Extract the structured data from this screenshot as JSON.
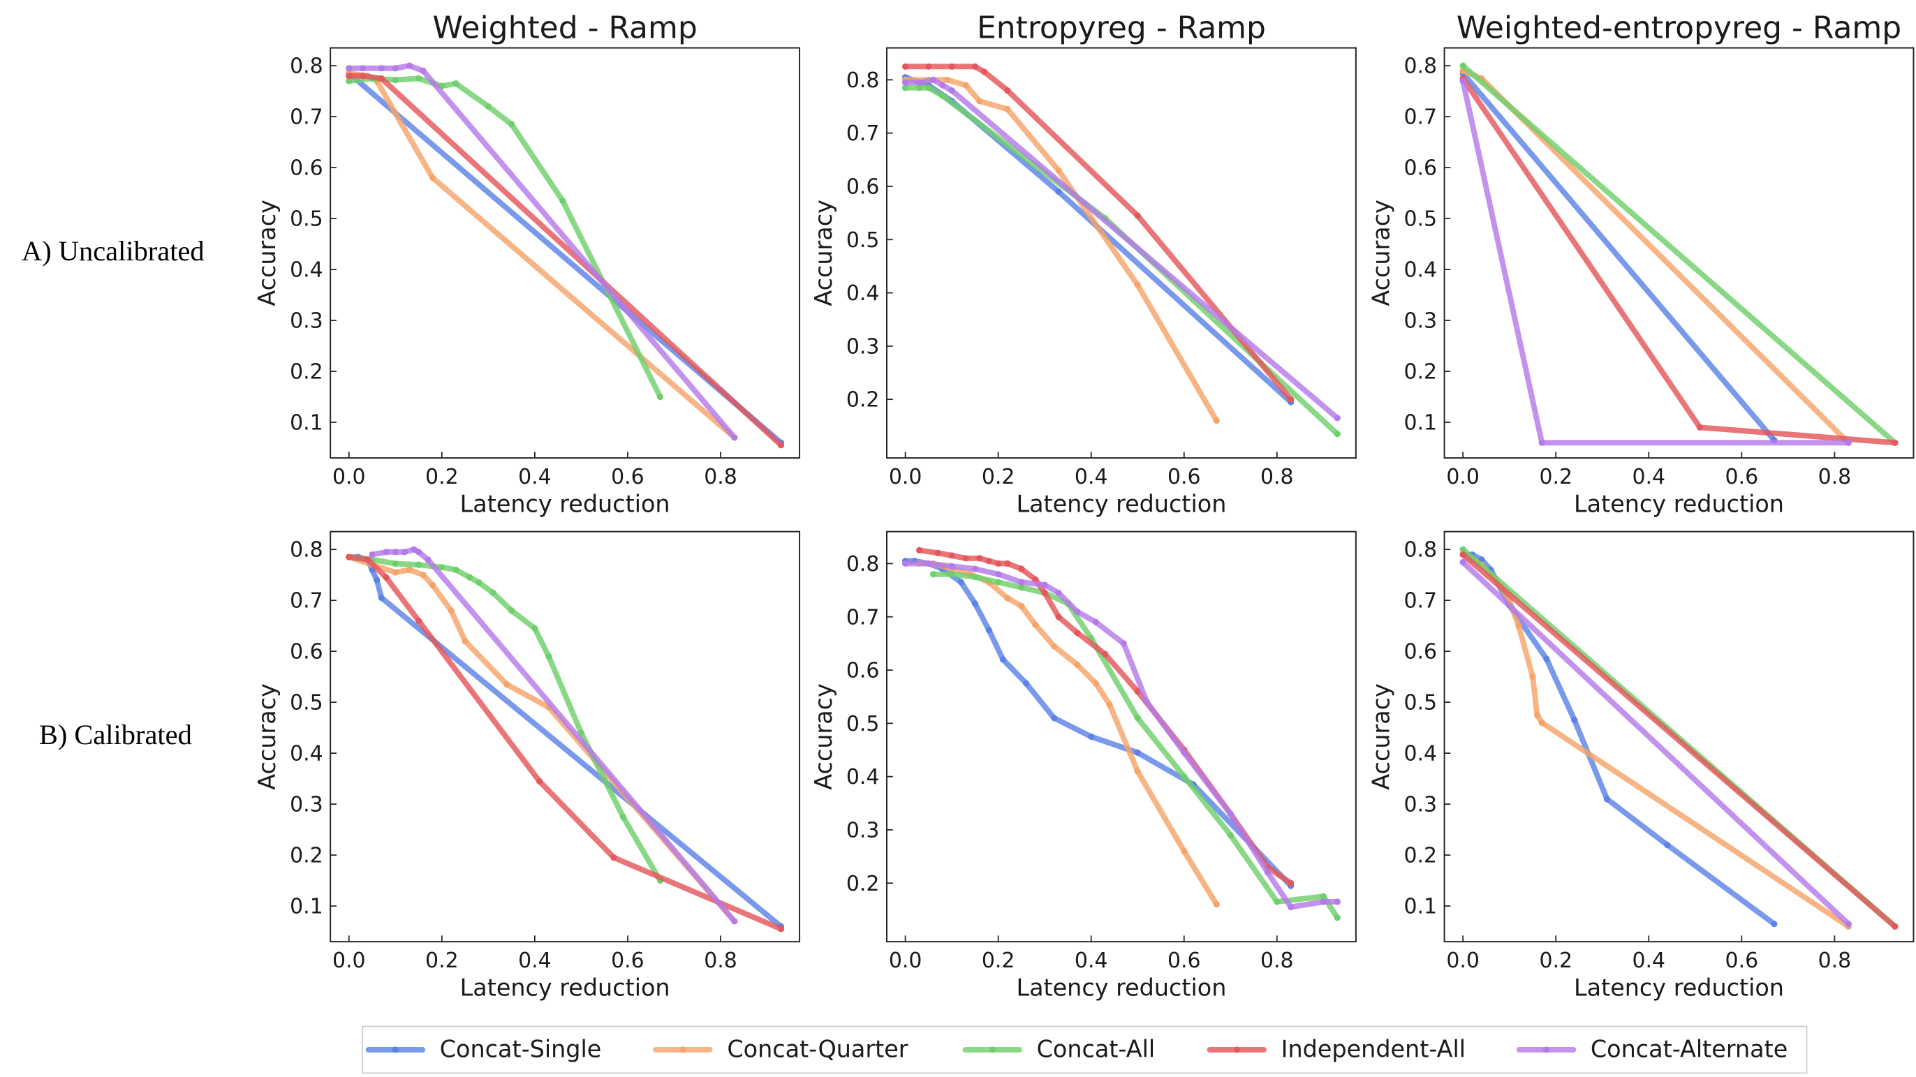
{
  "row_labels": [
    "A) Uncalibrated",
    "B) Calibrated"
  ],
  "colors": {
    "Concat-Single": "#5b82e6",
    "Concat-Quarter": "#f5a46a",
    "Concat-All": "#6fcf6b",
    "Independent-All": "#e4575c",
    "Concat-Alternate": "#b47ae8"
  },
  "legend": [
    "Concat-Single",
    "Concat-Quarter",
    "Concat-All",
    "Independent-All",
    "Concat-Alternate"
  ],
  "chart_data": [
    {
      "type": "line",
      "title": "Weighted - Ramp",
      "xlabel": "Latency reduction",
      "ylabel": "Accuracy",
      "xlim": [
        -0.04,
        0.97
      ],
      "ylim": [
        0.03,
        0.835
      ],
      "xticks": [
        "0.0",
        "0.2",
        "0.4",
        "0.6",
        "0.8"
      ],
      "yticks": [
        "0.1",
        "0.2",
        "0.3",
        "0.4",
        "0.5",
        "0.6",
        "0.7",
        "0.8"
      ],
      "series": [
        {
          "name": "Concat-Single",
          "x": [
            0.0,
            0.93
          ],
          "y": [
            0.785,
            0.06
          ]
        },
        {
          "name": "Concat-Quarter",
          "x": [
            0.0,
            0.04,
            0.06,
            0.18,
            0.83
          ],
          "y": [
            0.785,
            0.78,
            0.77,
            0.58,
            0.07
          ]
        },
        {
          "name": "Concat-All",
          "x": [
            0.0,
            0.05,
            0.1,
            0.15,
            0.2,
            0.23,
            0.3,
            0.35,
            0.46,
            0.67
          ],
          "y": [
            0.77,
            0.775,
            0.772,
            0.775,
            0.76,
            0.765,
            0.72,
            0.685,
            0.535,
            0.15
          ]
        },
        {
          "name": "Independent-All",
          "x": [
            0.0,
            0.03,
            0.07,
            0.93
          ],
          "y": [
            0.78,
            0.78,
            0.775,
            0.055
          ]
        },
        {
          "name": "Concat-Alternate",
          "x": [
            0.0,
            0.03,
            0.07,
            0.1,
            0.13,
            0.16,
            0.83
          ],
          "y": [
            0.795,
            0.795,
            0.795,
            0.795,
            0.8,
            0.79,
            0.07
          ]
        }
      ]
    },
    {
      "type": "line",
      "title": "Entropyreg - Ramp",
      "xlabel": "Latency reduction",
      "ylabel": "Accuracy",
      "xlim": [
        -0.04,
        0.97
      ],
      "ylim": [
        0.09,
        0.86
      ],
      "xticks": [
        "0.0",
        "0.2",
        "0.4",
        "0.6",
        "0.8"
      ],
      "yticks": [
        "0.2",
        "0.3",
        "0.4",
        "0.5",
        "0.6",
        "0.7",
        "0.8"
      ],
      "series": [
        {
          "name": "Concat-Single",
          "x": [
            0.0,
            0.05,
            0.1,
            0.33,
            0.83
          ],
          "y": [
            0.805,
            0.79,
            0.76,
            0.59,
            0.195
          ]
        },
        {
          "name": "Concat-Quarter",
          "x": [
            0.0,
            0.05,
            0.09,
            0.13,
            0.16,
            0.22,
            0.33,
            0.5,
            0.67
          ],
          "y": [
            0.8,
            0.8,
            0.8,
            0.79,
            0.76,
            0.745,
            0.63,
            0.415,
            0.16
          ]
        },
        {
          "name": "Concat-All",
          "x": [
            0.0,
            0.03,
            0.05,
            0.08,
            0.43,
            0.93
          ],
          "y": [
            0.785,
            0.785,
            0.785,
            0.77,
            0.54,
            0.135
          ]
        },
        {
          "name": "Independent-All",
          "x": [
            0.0,
            0.05,
            0.1,
            0.15,
            0.17,
            0.22,
            0.5,
            0.83
          ],
          "y": [
            0.825,
            0.825,
            0.825,
            0.825,
            0.815,
            0.78,
            0.545,
            0.2
          ]
        },
        {
          "name": "Concat-Alternate",
          "x": [
            0.0,
            0.03,
            0.06,
            0.08,
            0.1,
            0.93
          ],
          "y": [
            0.795,
            0.795,
            0.8,
            0.79,
            0.78,
            0.165
          ]
        }
      ]
    },
    {
      "type": "line",
      "title": "Weighted-entropyreg - Ramp",
      "xlabel": "Latency reduction",
      "ylabel": "Accuracy",
      "xlim": [
        -0.04,
        0.97
      ],
      "ylim": [
        0.03,
        0.835
      ],
      "xticks": [
        "0.0",
        "0.2",
        "0.4",
        "0.6",
        "0.8"
      ],
      "yticks": [
        "0.1",
        "0.2",
        "0.3",
        "0.4",
        "0.5",
        "0.6",
        "0.7",
        "0.8"
      ],
      "series": [
        {
          "name": "Concat-Single",
          "x": [
            0.0,
            0.67
          ],
          "y": [
            0.785,
            0.065
          ]
        },
        {
          "name": "Concat-Quarter",
          "x": [
            0.0,
            0.04,
            0.83
          ],
          "y": [
            0.79,
            0.775,
            0.06
          ]
        },
        {
          "name": "Concat-All",
          "x": [
            0.0,
            0.93
          ],
          "y": [
            0.8,
            0.06
          ]
        },
        {
          "name": "Independent-All",
          "x": [
            0.0,
            0.51,
            0.93
          ],
          "y": [
            0.775,
            0.09,
            0.06
          ]
        },
        {
          "name": "Concat-Alternate",
          "x": [
            0.0,
            0.17,
            0.83
          ],
          "y": [
            0.77,
            0.06,
            0.06
          ]
        }
      ]
    },
    {
      "type": "line",
      "title": "",
      "xlabel": "Latency reduction",
      "ylabel": "Accuracy",
      "xlim": [
        -0.04,
        0.97
      ],
      "ylim": [
        0.03,
        0.835
      ],
      "xticks": [
        "0.0",
        "0.2",
        "0.4",
        "0.6",
        "0.8"
      ],
      "yticks": [
        "0.1",
        "0.2",
        "0.3",
        "0.4",
        "0.5",
        "0.6",
        "0.7",
        "0.8"
      ],
      "series": [
        {
          "name": "Concat-Single",
          "x": [
            0.0,
            0.02,
            0.04,
            0.05,
            0.06,
            0.07,
            0.93
          ],
          "y": [
            0.785,
            0.785,
            0.78,
            0.76,
            0.74,
            0.705,
            0.06
          ]
        },
        {
          "name": "Concat-Quarter",
          "x": [
            0.0,
            0.05,
            0.1,
            0.13,
            0.16,
            0.18,
            0.22,
            0.25,
            0.34,
            0.43,
            0.83
          ],
          "y": [
            0.785,
            0.77,
            0.755,
            0.76,
            0.75,
            0.73,
            0.68,
            0.62,
            0.535,
            0.49,
            0.07
          ]
        },
        {
          "name": "Concat-All",
          "x": [
            0.0,
            0.05,
            0.1,
            0.15,
            0.2,
            0.23,
            0.26,
            0.28,
            0.31,
            0.35,
            0.4,
            0.43,
            0.5,
            0.59,
            0.67
          ],
          "y": [
            0.785,
            0.78,
            0.772,
            0.77,
            0.765,
            0.76,
            0.745,
            0.735,
            0.715,
            0.68,
            0.645,
            0.59,
            0.44,
            0.275,
            0.15
          ]
        },
        {
          "name": "Independent-All",
          "x": [
            0.0,
            0.04,
            0.08,
            0.15,
            0.41,
            0.57,
            0.93
          ],
          "y": [
            0.785,
            0.78,
            0.745,
            0.66,
            0.345,
            0.195,
            0.055
          ]
        },
        {
          "name": "Concat-Alternate",
          "x": [
            0.05,
            0.08,
            0.1,
            0.12,
            0.14,
            0.15,
            0.17,
            0.83
          ],
          "y": [
            0.79,
            0.795,
            0.795,
            0.795,
            0.8,
            0.795,
            0.78,
            0.07
          ]
        }
      ]
    },
    {
      "type": "line",
      "title": "",
      "xlabel": "Latency reduction",
      "ylabel": "Accuracy",
      "xlim": [
        -0.04,
        0.97
      ],
      "ylim": [
        0.09,
        0.86
      ],
      "xticks": [
        "0.0",
        "0.2",
        "0.4",
        "0.6",
        "0.8"
      ],
      "yticks": [
        "0.2",
        "0.3",
        "0.4",
        "0.5",
        "0.6",
        "0.7",
        "0.8"
      ],
      "series": [
        {
          "name": "Concat-Single",
          "x": [
            0.0,
            0.02,
            0.05,
            0.08,
            0.12,
            0.15,
            0.18,
            0.21,
            0.26,
            0.32,
            0.4,
            0.5,
            0.62,
            0.83
          ],
          "y": [
            0.805,
            0.805,
            0.8,
            0.79,
            0.765,
            0.725,
            0.675,
            0.62,
            0.575,
            0.51,
            0.475,
            0.445,
            0.385,
            0.195
          ]
        },
        {
          "name": "Concat-Quarter",
          "x": [
            0.03,
            0.06,
            0.1,
            0.14,
            0.18,
            0.22,
            0.25,
            0.28,
            0.32,
            0.37,
            0.41,
            0.44,
            0.5,
            0.6,
            0.67
          ],
          "y": [
            0.8,
            0.8,
            0.79,
            0.78,
            0.765,
            0.735,
            0.72,
            0.685,
            0.645,
            0.61,
            0.575,
            0.535,
            0.41,
            0.26,
            0.16
          ]
        },
        {
          "name": "Concat-All",
          "x": [
            0.06,
            0.1,
            0.15,
            0.2,
            0.25,
            0.3,
            0.35,
            0.4,
            0.5,
            0.6,
            0.7,
            0.8,
            0.9,
            0.93
          ],
          "y": [
            0.78,
            0.78,
            0.775,
            0.765,
            0.755,
            0.745,
            0.725,
            0.66,
            0.51,
            0.4,
            0.29,
            0.165,
            0.175,
            0.135
          ]
        },
        {
          "name": "Independent-All",
          "x": [
            0.03,
            0.07,
            0.1,
            0.13,
            0.16,
            0.18,
            0.2,
            0.22,
            0.25,
            0.28,
            0.3,
            0.33,
            0.37,
            0.43,
            0.5,
            0.6,
            0.7,
            0.78,
            0.83
          ],
          "y": [
            0.825,
            0.82,
            0.815,
            0.81,
            0.81,
            0.805,
            0.8,
            0.8,
            0.79,
            0.77,
            0.745,
            0.7,
            0.67,
            0.63,
            0.56,
            0.45,
            0.33,
            0.23,
            0.2
          ]
        },
        {
          "name": "Concat-Alternate",
          "x": [
            0.0,
            0.05,
            0.1,
            0.15,
            0.2,
            0.25,
            0.3,
            0.33,
            0.37,
            0.41,
            0.47,
            0.52,
            0.6,
            0.7,
            0.78,
            0.83,
            0.9,
            0.93
          ],
          "y": [
            0.8,
            0.8,
            0.795,
            0.79,
            0.78,
            0.765,
            0.76,
            0.745,
            0.71,
            0.69,
            0.65,
            0.54,
            0.445,
            0.33,
            0.22,
            0.155,
            0.165,
            0.165
          ]
        }
      ]
    },
    {
      "type": "line",
      "title": "",
      "xlabel": "Latency reduction",
      "ylabel": "Accuracy",
      "xlim": [
        -0.04,
        0.97
      ],
      "ylim": [
        0.03,
        0.835
      ],
      "xticks": [
        "0.0",
        "0.2",
        "0.4",
        "0.6",
        "0.8"
      ],
      "yticks": [
        "0.1",
        "0.2",
        "0.3",
        "0.4",
        "0.5",
        "0.6",
        "0.7",
        "0.8"
      ],
      "series": [
        {
          "name": "Concat-Single",
          "x": [
            0.0,
            0.02,
            0.04,
            0.06,
            0.1,
            0.18,
            0.24,
            0.31,
            0.44,
            0.67
          ],
          "y": [
            0.79,
            0.79,
            0.78,
            0.76,
            0.69,
            0.585,
            0.465,
            0.31,
            0.22,
            0.065
          ]
        },
        {
          "name": "Concat-Quarter",
          "x": [
            0.0,
            0.04,
            0.08,
            0.1,
            0.12,
            0.15,
            0.16,
            0.17,
            0.83
          ],
          "y": [
            0.79,
            0.77,
            0.73,
            0.7,
            0.65,
            0.55,
            0.475,
            0.46,
            0.06
          ]
        },
        {
          "name": "Concat-All",
          "x": [
            0.0,
            0.93
          ],
          "y": [
            0.8,
            0.06
          ]
        },
        {
          "name": "Independent-All",
          "x": [
            0.0,
            0.93
          ],
          "y": [
            0.79,
            0.06
          ]
        },
        {
          "name": "Concat-Alternate",
          "x": [
            0.0,
            0.83
          ],
          "y": [
            0.775,
            0.065
          ]
        }
      ]
    }
  ]
}
